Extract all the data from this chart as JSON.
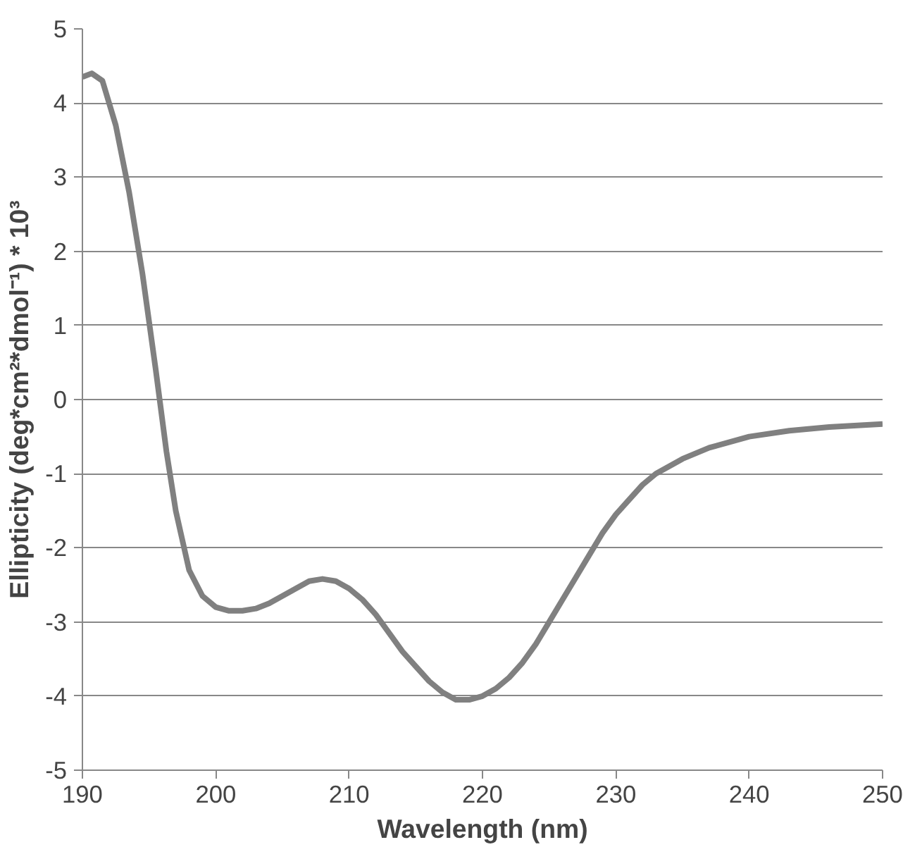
{
  "chart_data": {
    "type": "line",
    "xlabel": "Wavelength (nm)",
    "ylabel": "Ellipticity (deg*cm²*dmol⁻¹) * 10³",
    "xlim": [
      190,
      250
    ],
    "ylim": [
      -5,
      5
    ],
    "xticks": [
      190,
      200,
      210,
      220,
      230,
      240,
      250
    ],
    "yticks": [
      -5,
      -4,
      -3,
      -2,
      -1,
      0,
      1,
      2,
      3,
      4,
      5
    ],
    "grid": "y",
    "marker": "none",
    "line_style": "solid",
    "series": [
      {
        "color": "#808080",
        "x": [
          190,
          190.7,
          191.5,
          192.5,
          193.5,
          194.5,
          195.5,
          196.3,
          197,
          198,
          199,
          200,
          201,
          202,
          203,
          204,
          205,
          206,
          207,
          208,
          209,
          210,
          211,
          212,
          213,
          214,
          215,
          216,
          217,
          218,
          219,
          220,
          221,
          222,
          223,
          224,
          225,
          226,
          227,
          228,
          229,
          230,
          231,
          232,
          233,
          234,
          235,
          237,
          240,
          243,
          246,
          250
        ],
        "values": [
          4.35,
          4.4,
          4.3,
          3.7,
          2.8,
          1.7,
          0.4,
          -0.7,
          -1.5,
          -2.3,
          -2.65,
          -2.8,
          -2.85,
          -2.85,
          -2.82,
          -2.75,
          -2.65,
          -2.55,
          -2.45,
          -2.42,
          -2.45,
          -2.55,
          -2.7,
          -2.9,
          -3.15,
          -3.4,
          -3.6,
          -3.8,
          -3.95,
          -4.05,
          -4.05,
          -4.0,
          -3.9,
          -3.75,
          -3.55,
          -3.3,
          -3.0,
          -2.7,
          -2.4,
          -2.1,
          -1.8,
          -1.55,
          -1.35,
          -1.15,
          -1.0,
          -0.9,
          -0.8,
          -0.65,
          -0.5,
          -0.42,
          -0.37,
          -0.33
        ]
      }
    ]
  }
}
